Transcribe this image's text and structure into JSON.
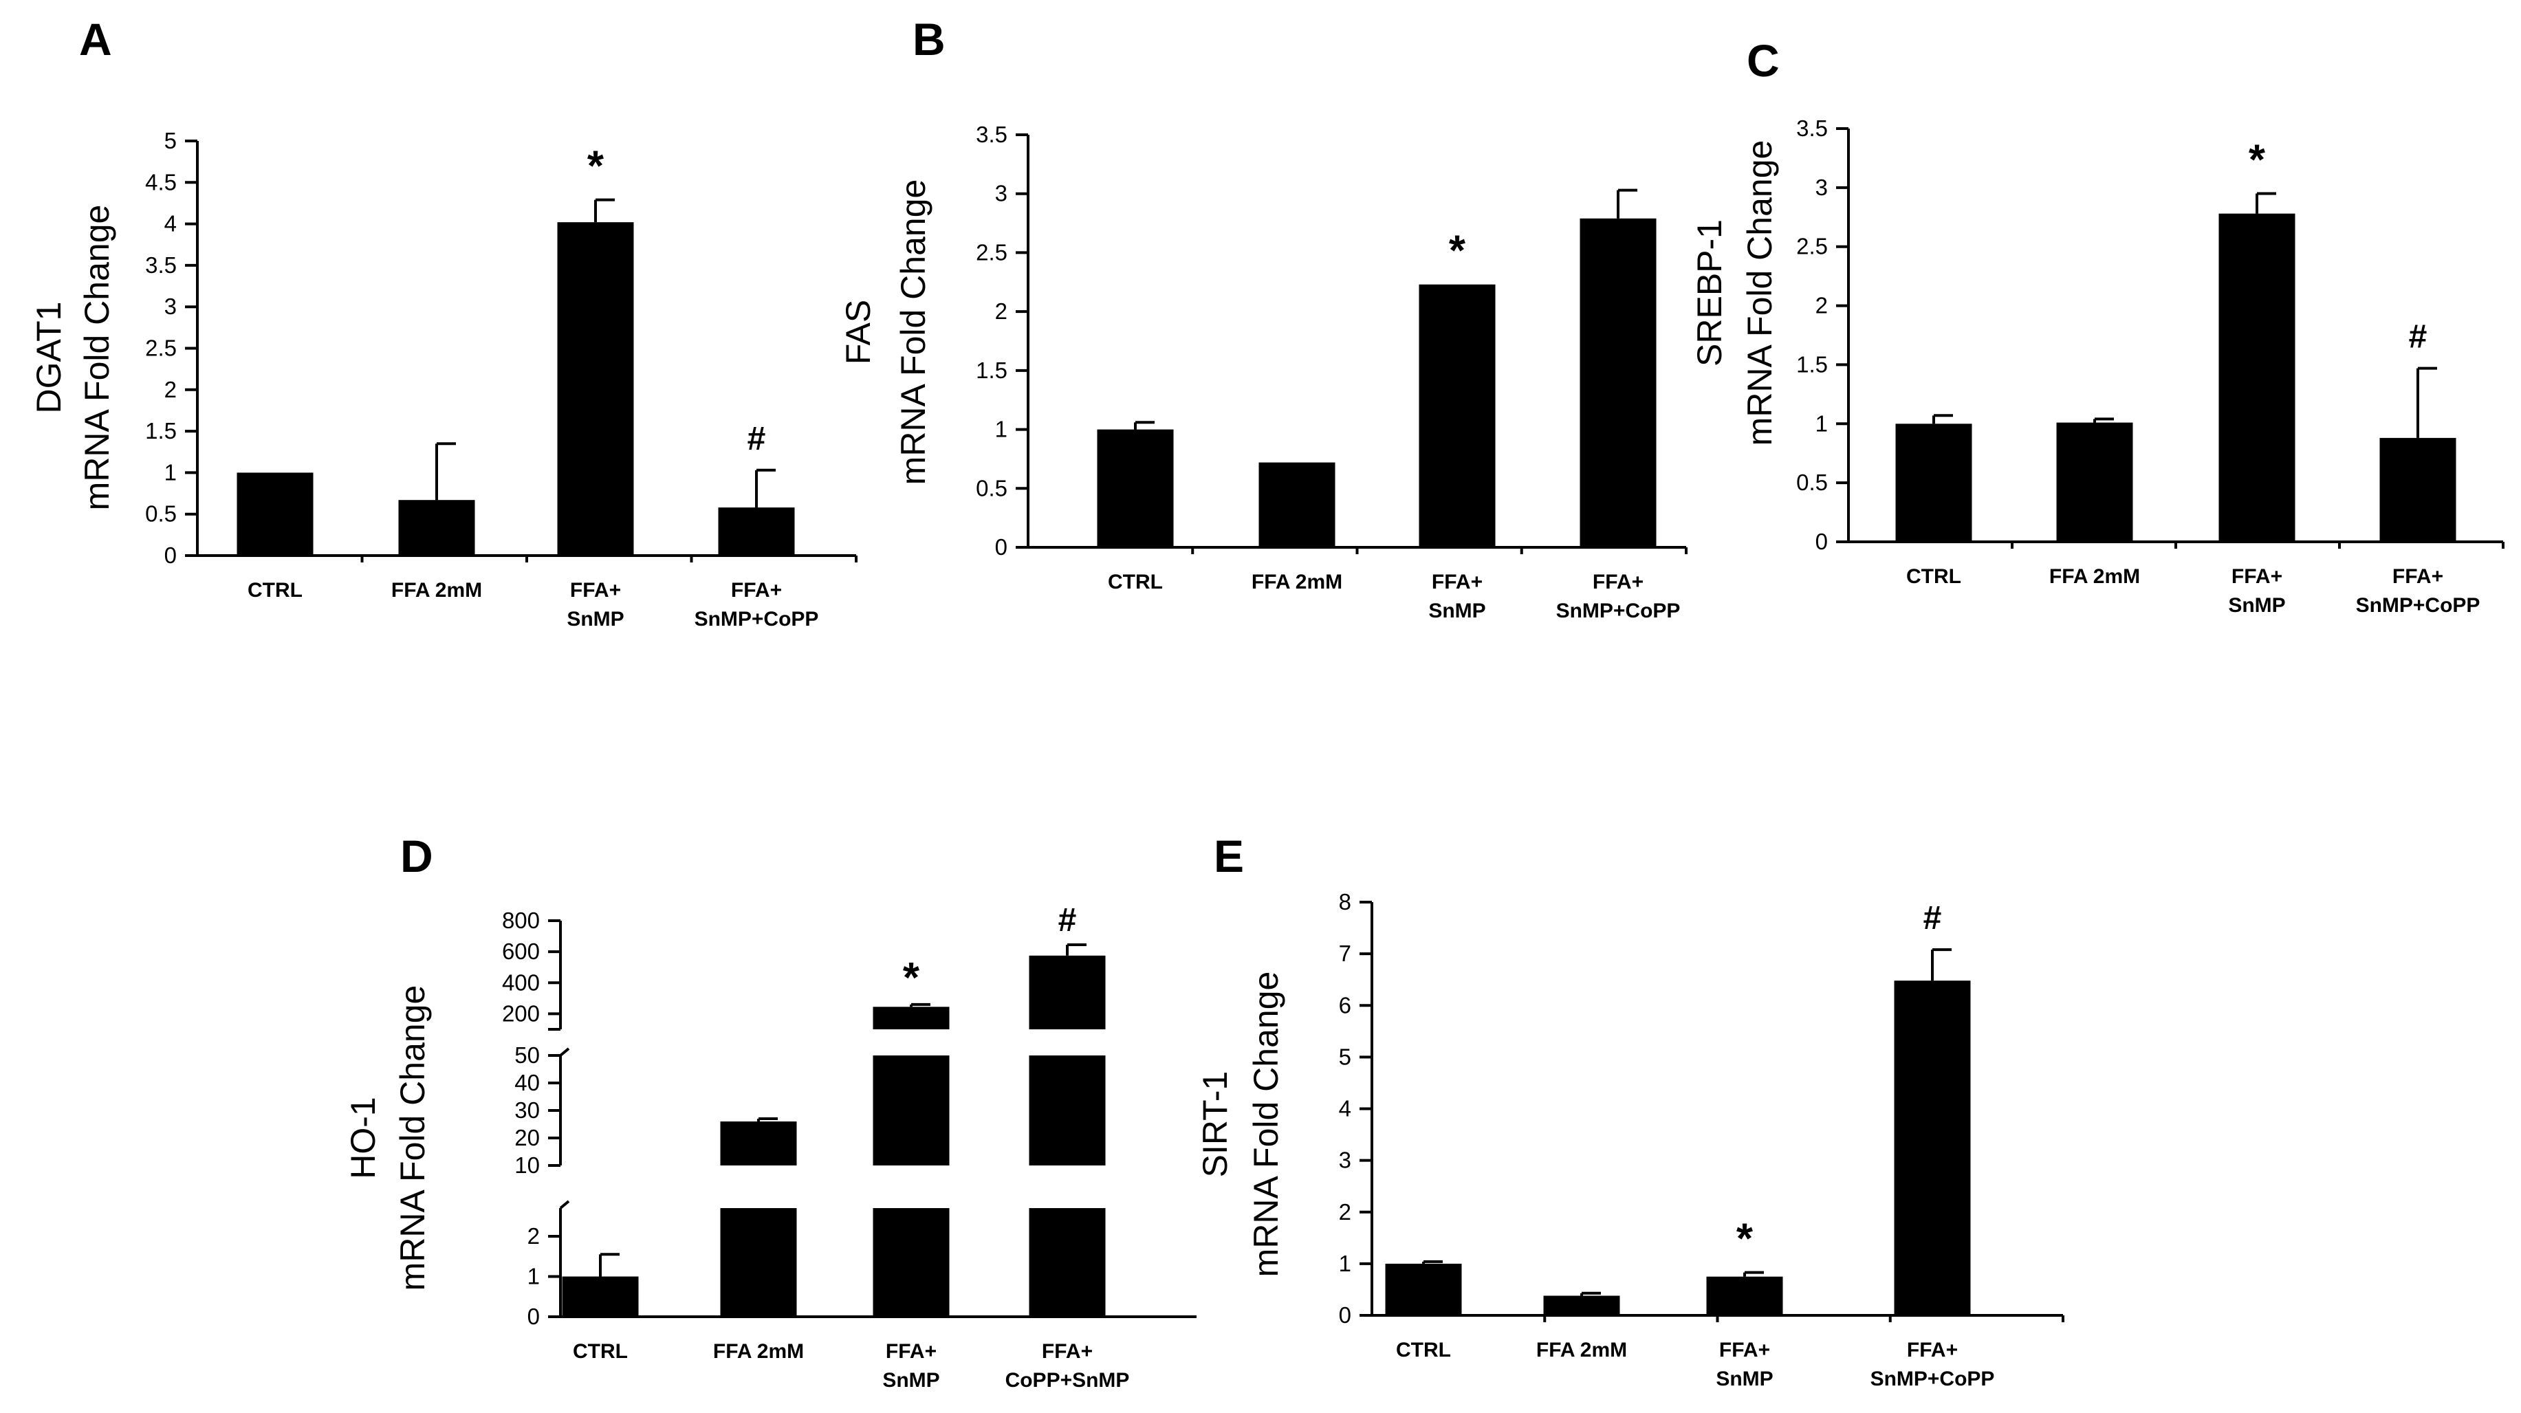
{
  "chart_data": [
    {
      "panel": "A",
      "type": "bar",
      "ylabel": [
        "DGAT1",
        "mRNA Fold Change"
      ],
      "categories": [
        [
          "CTRL"
        ],
        [
          "FFA 2mM"
        ],
        [
          "FFA+",
          "SnMP"
        ],
        [
          "FFA+",
          "SnMP+CoPP"
        ]
      ],
      "values": [
        1.0,
        0.67,
        4.02,
        0.58
      ],
      "errors": [
        0,
        0.68,
        0.27,
        0.45
      ],
      "annotations": [
        "",
        "",
        "*",
        "#"
      ],
      "ylim": [
        0,
        5
      ],
      "yticks": [
        0,
        0.5,
        1,
        1.5,
        2,
        2.5,
        3,
        3.5,
        4,
        4.5,
        5
      ],
      "ytick_labels": [
        "0",
        "0.5",
        "1",
        "1.5",
        "2",
        "2.5",
        "3",
        "3.5",
        "4",
        "4.5",
        "5"
      ]
    },
    {
      "panel": "B",
      "type": "bar",
      "ylabel": [
        "FAS",
        "mRNA Fold Change"
      ],
      "categories": [
        [
          "CTRL"
        ],
        [
          "FFA 2mM"
        ],
        [
          "FFA+",
          "SnMP"
        ],
        [
          "FFA+",
          "SnMP+CoPP"
        ]
      ],
      "values": [
        1.0,
        0.72,
        2.23,
        2.79
      ],
      "errors": [
        0.06,
        0,
        0,
        0.24
      ],
      "annotations": [
        "",
        "",
        "*",
        ""
      ],
      "ylim": [
        0,
        3.5
      ],
      "yticks": [
        0,
        0.5,
        1,
        1.5,
        2,
        2.5,
        3,
        3.5
      ],
      "ytick_labels": [
        "0",
        "0.5",
        "1",
        "1.5",
        "2",
        "2.5",
        "3",
        "3.5"
      ]
    },
    {
      "panel": "C",
      "type": "bar",
      "ylabel": [
        "SREBP-1",
        "mRNA Fold Change"
      ],
      "categories": [
        [
          "CTRL"
        ],
        [
          "FFA 2mM"
        ],
        [
          "FFA+",
          "SnMP"
        ],
        [
          "FFA+",
          "SnMP+CoPP"
        ]
      ],
      "values": [
        1.0,
        1.01,
        2.78,
        0.88
      ],
      "errors": [
        0.07,
        0.03,
        0.17,
        0.59
      ],
      "annotations": [
        "",
        "",
        "*",
        "#"
      ],
      "ylim": [
        0,
        3.5
      ],
      "yticks": [
        0,
        0.5,
        1,
        1.5,
        2,
        2.5,
        3,
        3.5
      ],
      "ytick_labels": [
        "0",
        "0.5",
        "1",
        "1.5",
        "2",
        "2.5",
        "3",
        "3.5"
      ]
    },
    {
      "panel": "D",
      "type": "bar",
      "broken_axis": true,
      "ylabel": [
        "HO-1",
        "mRNA Fold Change"
      ],
      "categories": [
        [
          "CTRL"
        ],
        [
          "FFA 2mM"
        ],
        [
          "FFA+",
          "SnMP"
        ],
        [
          "FFA+",
          "CoPP+SnMP"
        ]
      ],
      "values": [
        1.0,
        26,
        245,
        575
      ],
      "errors": [
        0.55,
        1,
        15,
        70
      ],
      "annotations": [
        "",
        "",
        "*",
        "#"
      ],
      "segments": [
        {
          "ylim": [
            0,
            2.7
          ],
          "yticks": [
            0,
            1,
            2
          ],
          "ytick_labels": [
            "0",
            "1",
            "2"
          ]
        },
        {
          "ylim": [
            10,
            50
          ],
          "yticks": [
            10,
            20,
            30,
            40,
            50
          ],
          "ytick_labels": [
            "10",
            "20",
            "30",
            "40",
            "50"
          ]
        },
        {
          "ylim": [
            100,
            800
          ],
          "yticks": [
            200,
            400,
            600,
            800
          ],
          "ytick_labels": [
            "200",
            "400",
            "600",
            "800"
          ]
        }
      ]
    },
    {
      "panel": "E",
      "type": "bar",
      "ylabel": [
        "SIRT-1",
        "mRNA Fold Change"
      ],
      "categories": [
        [
          "CTRL"
        ],
        [
          "FFA 2mM"
        ],
        [
          "FFA+",
          "SnMP"
        ],
        [
          "FFA+",
          "SnMP+CoPP"
        ]
      ],
      "values": [
        1.0,
        0.38,
        0.75,
        6.48
      ],
      "errors": [
        0.04,
        0.05,
        0.08,
        0.6
      ],
      "annotations": [
        "",
        "",
        "*",
        "#"
      ],
      "ylim": [
        0,
        8
      ],
      "yticks": [
        0,
        1,
        2,
        3,
        4,
        5,
        6,
        7,
        8
      ],
      "ytick_labels": [
        "0",
        "1",
        "2",
        "3",
        "4",
        "5",
        "6",
        "7",
        "8"
      ]
    }
  ]
}
